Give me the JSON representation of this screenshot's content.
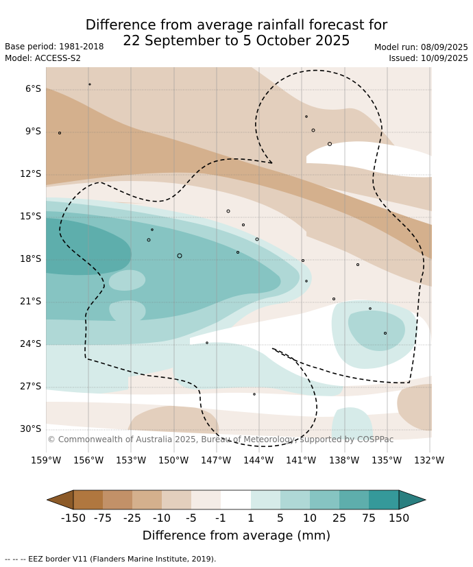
{
  "title": {
    "line1": "Difference from average rainfall forecast for",
    "line2": "22 September to 5 October 2025"
  },
  "header": {
    "base_period": "Base period: 1981-2018",
    "model": "Model: ACCESS-S2",
    "model_run": "Model run: 08/09/2025",
    "issued": "Issued: 10/09/2025"
  },
  "map": {
    "lat_labels": [
      "6°S",
      "9°S",
      "12°S",
      "15°S",
      "18°S",
      "21°S",
      "24°S",
      "27°S",
      "30°S"
    ],
    "lon_labels": [
      "159°W",
      "156°W",
      "153°W",
      "150°W",
      "147°W",
      "144°W",
      "141°W",
      "138°W",
      "135°W",
      "132°W"
    ],
    "copyright": "© Commonwealth of Australia 2025, Bureau of Meteorology, supported by COSPPac"
  },
  "colorbar": {
    "labels": [
      "-150",
      "-75",
      "-25",
      "-10",
      "-5",
      "-1",
      "1",
      "5",
      "10",
      "25",
      "75",
      "150"
    ],
    "colors": [
      "#8c5a28",
      "#b0773f",
      "#c29168",
      "#d4b08d",
      "#e3cfbd",
      "#f4ece6",
      "#ffffff",
      "#d6ebe9",
      "#afd8d6",
      "#86c4c2",
      "#5eaeac",
      "#35999a",
      "#2a7f80"
    ],
    "title": "Difference from average (mm)"
  },
  "footnote": "--  --  -- EEZ border V11 (Flanders Marine Institute, 2019)."
}
